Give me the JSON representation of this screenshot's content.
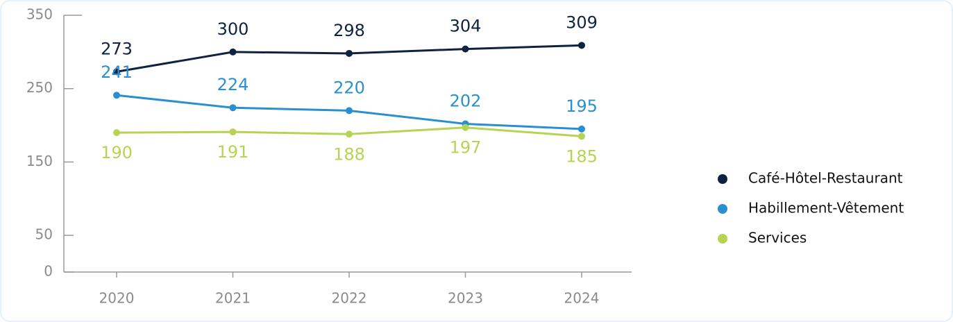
{
  "chart_data": {
    "type": "line",
    "categories": [
      "2020",
      "2021",
      "2022",
      "2023",
      "2024"
    ],
    "series": [
      {
        "name": "Café-Hôtel-Restaurant",
        "color": "#0f2340",
        "values": [
          273,
          300,
          298,
          304,
          309
        ],
        "label_position": "above"
      },
      {
        "name": "Habillement-Vêtement",
        "color": "#2a8fd0",
        "values": [
          241,
          224,
          220,
          202,
          195
        ],
        "label_position": "above"
      },
      {
        "name": "Services",
        "color": "#b5d454",
        "values": [
          190,
          191,
          188,
          197,
          185
        ],
        "label_position": "below"
      }
    ],
    "ylim": [
      0,
      350
    ],
    "yticks": [
      0,
      50,
      150,
      250,
      350
    ],
    "grid": false,
    "legend": "right"
  }
}
